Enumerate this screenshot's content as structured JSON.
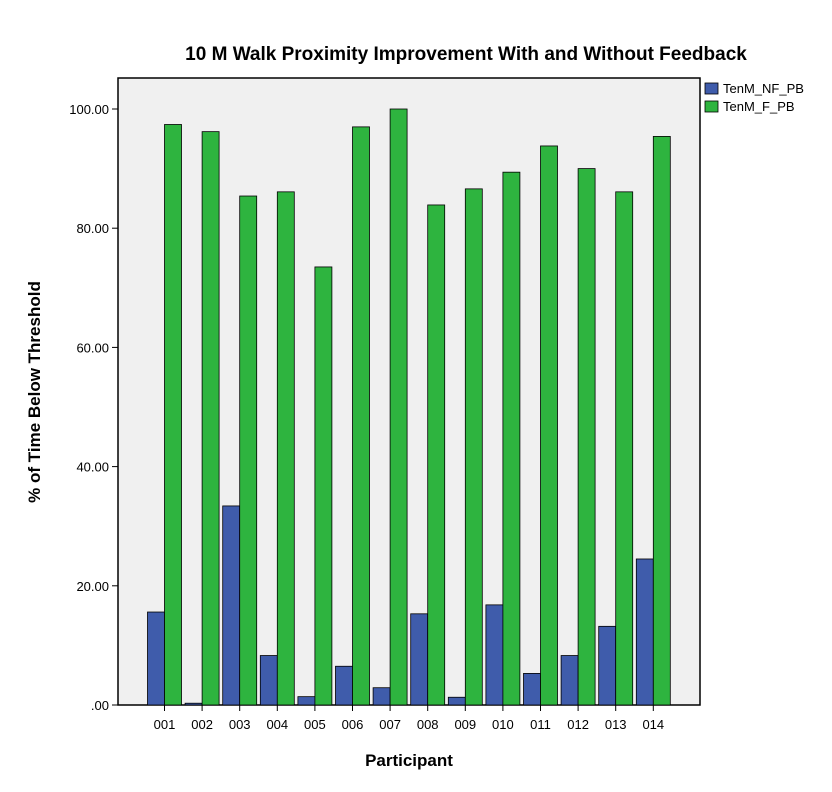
{
  "chart_data": {
    "type": "bar",
    "title": "10 M Walk Proximity Improvement With and Without Feedback",
    "xlabel": "Participant",
    "ylabel": "% of Time Below Threshold",
    "categories": [
      "001",
      "002",
      "003",
      "004",
      "005",
      "006",
      "007",
      "008",
      "009",
      "010",
      "011",
      "012",
      "013",
      "014"
    ],
    "series": [
      {
        "name": "TenM_NF_PB",
        "color": "#3f5cab",
        "values": [
          15.6,
          0.3,
          33.4,
          8.3,
          1.4,
          6.5,
          2.9,
          15.3,
          1.3,
          16.8,
          5.3,
          8.3,
          13.2,
          24.5
        ]
      },
      {
        "name": "TenM_F_PB",
        "color": "#2eb43f",
        "values": [
          97.4,
          96.2,
          85.4,
          86.1,
          73.5,
          97.0,
          100.0,
          83.9,
          86.6,
          89.4,
          93.8,
          90.0,
          86.1,
          95.4
        ]
      }
    ],
    "yticks": [
      ".00",
      "20.00",
      "40.00",
      "60.00",
      "80.00",
      "100.00"
    ],
    "ytick_values": [
      0,
      20,
      40,
      60,
      80,
      100
    ],
    "ylim": [
      0,
      100
    ],
    "grid": false,
    "legend_position": "top-right outside plot",
    "plot_background": "#f0f0f0"
  }
}
